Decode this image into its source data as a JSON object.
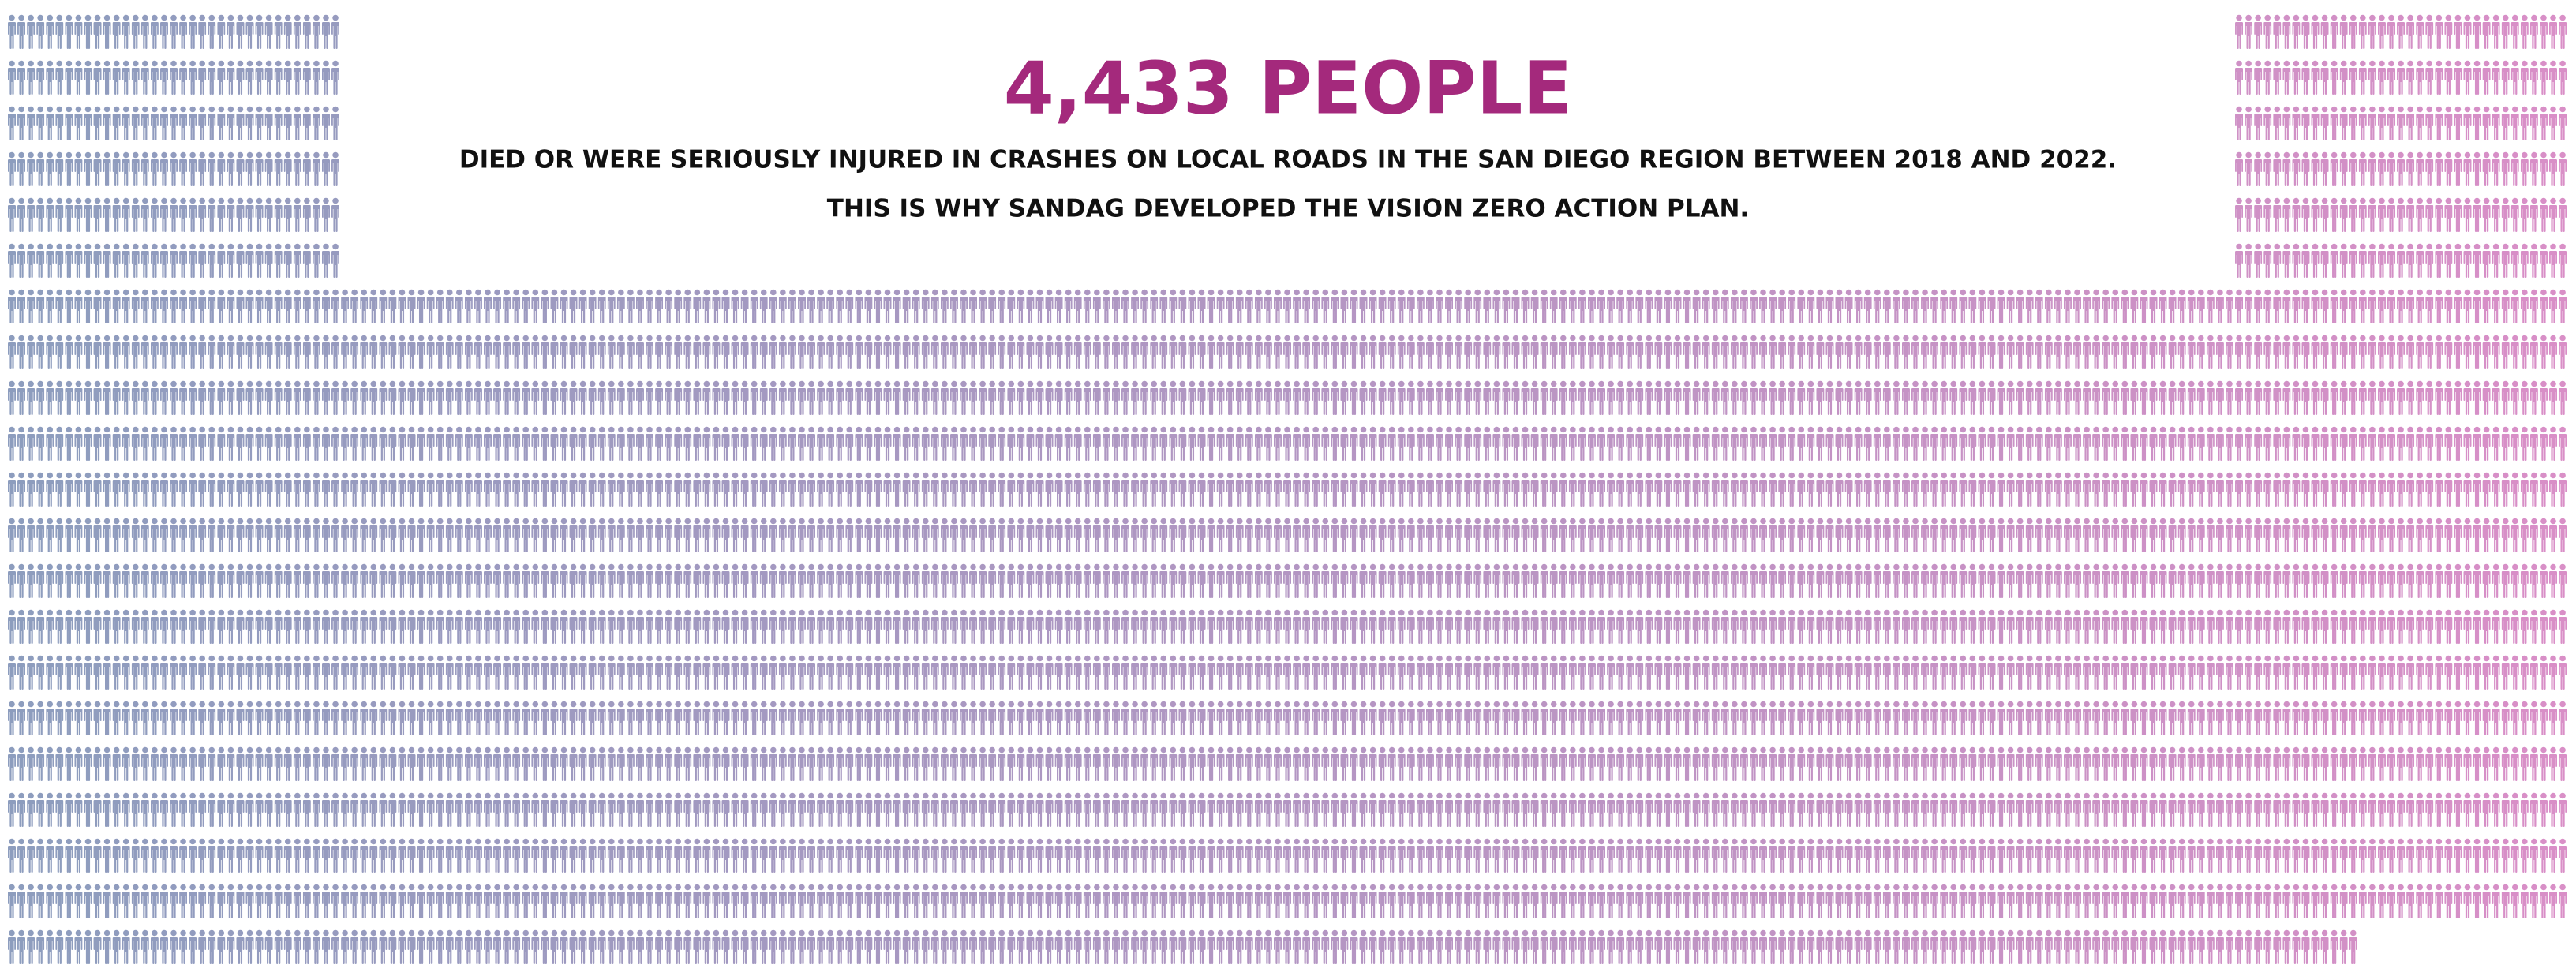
{
  "chart_data": {
    "type": "pictogram",
    "title": "4,433 PEOPLE",
    "subtitle": "DIED OR WERE SERIOUSLY INJURED IN CRASHES ON LOCAL ROADS IN THE SAN DIEGO REGION BETWEEN 2018 AND 2022.",
    "caption": "THIS IS WHY SANDAG DEVELOPED THE VISION ZERO ACTION PLAN.",
    "value": 4433,
    "colors": [
      "#8d9dbe",
      "#d98fc7"
    ],
    "title_color": "#a4297c"
  }
}
